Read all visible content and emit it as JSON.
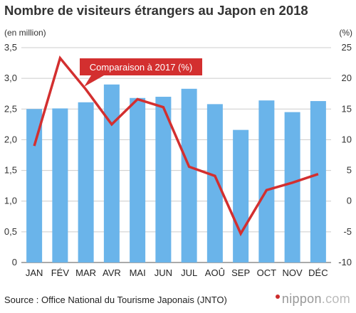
{
  "title": "Nombre de visiteurs étrangers au Japon en 2018",
  "source": "Source : Office National du Tourisme Japonais (JNTO)",
  "brand": {
    "name": "nippon",
    "domain": ".com"
  },
  "chart_data": {
    "type": "bar",
    "categories": [
      "JAN",
      "FÉV",
      "MAR",
      "AVR",
      "MAI",
      "JUN",
      "JUL",
      "AOÛ",
      "SEP",
      "OCT",
      "NOV",
      "DÉC"
    ],
    "series": [
      {
        "type": "bar",
        "axis": "left",
        "values": [
          2.5,
          2.51,
          2.61,
          2.9,
          2.68,
          2.7,
          2.83,
          2.58,
          2.16,
          2.64,
          2.45,
          2.63
        ]
      },
      {
        "type": "line",
        "axis": "right",
        "name": "Comparaison à 2017 (%)",
        "values": [
          9.0,
          23.3,
          18.2,
          12.5,
          16.6,
          15.3,
          5.6,
          4.1,
          -5.3,
          1.8,
          3.0,
          4.4
        ]
      }
    ],
    "y_left": {
      "unit_label": "(en million)",
      "ylim": [
        0,
        3.5
      ],
      "ticks": [
        "0",
        "0,5",
        "1,0",
        "1,5",
        "2,0",
        "2,5",
        "3,0",
        "3,5"
      ]
    },
    "y_right": {
      "unit_label": "(%)",
      "ylim": [
        -10,
        25
      ],
      "ticks": [
        "-10",
        "-5",
        "0",
        "5",
        "10",
        "15",
        "20",
        "25"
      ]
    },
    "grid": true,
    "colors": {
      "bar": "#6ab4ea",
      "line": "#d32f2f",
      "grid": "#cccccc",
      "axis": "#555555"
    }
  }
}
